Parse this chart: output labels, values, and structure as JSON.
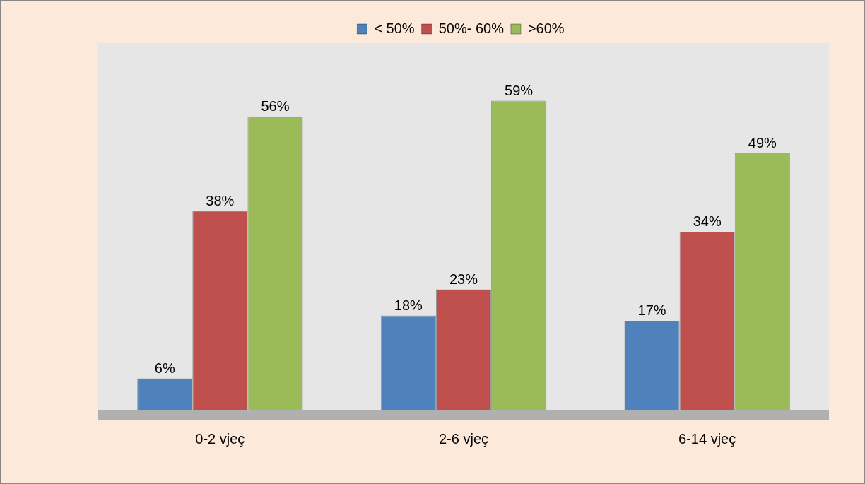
{
  "chart_data": {
    "type": "bar",
    "categories": [
      "0-2 vjeç",
      "2-6 vjeç",
      "6-14 vjeç"
    ],
    "legend": "top",
    "grid": false,
    "series": [
      {
        "name": "< 50%",
        "color": "#4f81bd",
        "values": [
          6,
          18,
          17
        ],
        "value_labels": [
          "6%",
          "18%",
          "17%"
        ]
      },
      {
        "name": "50%- 60%",
        "color": "#c0504d",
        "values": [
          38,
          23,
          34
        ],
        "value_labels": [
          "38%",
          "23%",
          "34%"
        ]
      },
      {
        "name": ">60%",
        "color": "#9bbb59",
        "values": [
          56,
          59,
          49
        ],
        "value_labels": [
          "56%",
          "59%",
          "49%"
        ]
      }
    ]
  }
}
